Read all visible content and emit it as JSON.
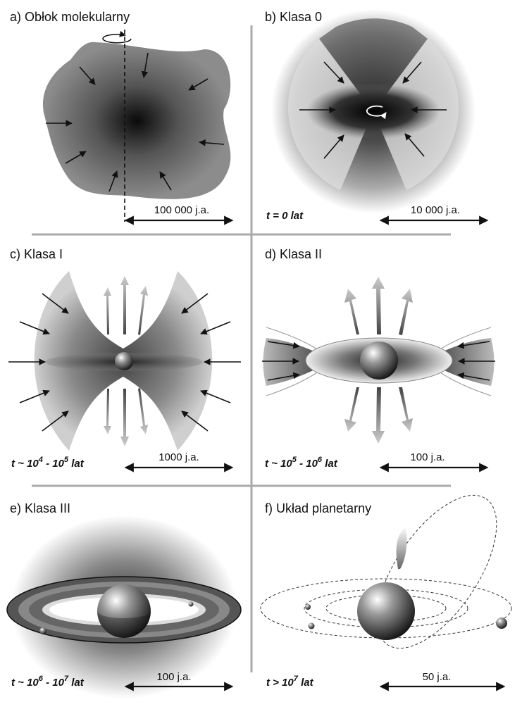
{
  "panels": [
    {
      "id": "a",
      "title": "a) Obłok molekularny",
      "time": "",
      "scale": "100 000 j.a."
    },
    {
      "id": "b",
      "title": "b) Klasa 0",
      "time": "t = 0 lat",
      "scale": "10 000 j.a."
    },
    {
      "id": "c",
      "title": "c) Klasa I",
      "time_prefix": "t ~ 10",
      "time_exp1": "4",
      "time_mid": " - 10",
      "time_exp2": "5",
      "time_suffix": " lat",
      "scale": "1000 j.a."
    },
    {
      "id": "d",
      "title": "d) Klasa II",
      "time_prefix": "t ~ 10",
      "time_exp1": "5",
      "time_mid": " - 10",
      "time_exp2": "6",
      "time_suffix": " lat",
      "scale": "100 j.a."
    },
    {
      "id": "e",
      "title": "e) Klasa III",
      "time_prefix": "t ~ 10",
      "time_exp1": "6",
      "time_mid": " - 10",
      "time_exp2": "7",
      "time_suffix": " lat",
      "scale": "100 j.a."
    },
    {
      "id": "f",
      "title": "f) Układ planetarny",
      "time_prefix": "t > 10",
      "time_exp1": "7",
      "time_suffix": " lat",
      "scale": "50 j.a."
    }
  ],
  "colors": {
    "divider": "#aaaaaa",
    "ink": "#111111",
    "cloud": "#8a8a8a"
  }
}
